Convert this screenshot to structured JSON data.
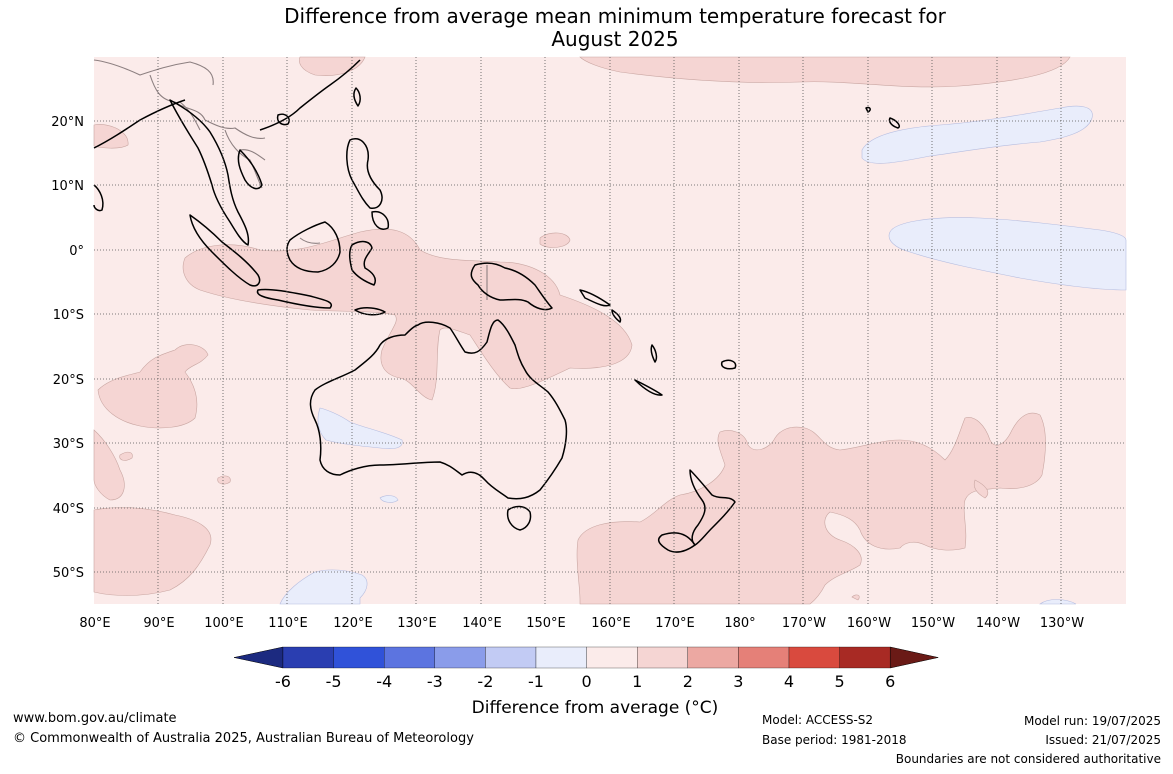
{
  "title_line1": "Difference from average mean minimum temperature forecast for",
  "title_line2": "August 2025",
  "lat_labels": [
    "20°N",
    "10°N",
    "0°",
    "10°S",
    "20°S",
    "30°S",
    "40°S",
    "50°S"
  ],
  "lon_labels": [
    "80°E",
    "90°E",
    "100°E",
    "110°E",
    "120°E",
    "130°E",
    "140°E",
    "150°E",
    "160°E",
    "170°E",
    "180°",
    "170°W",
    "160°W",
    "150°W",
    "140°W",
    "130°W"
  ],
  "colorbar": {
    "ticks": [
      "-6",
      "-5",
      "-4",
      "-3",
      "-2",
      "-1",
      "0",
      "1",
      "2",
      "3",
      "4",
      "5",
      "6"
    ],
    "colors": [
      "#1c2a80",
      "#2a3eb1",
      "#3052d9",
      "#5c74e0",
      "#8a9cea",
      "#c2cbf4",
      "#e9edfb",
      "#fbebea",
      "#f5d5d3",
      "#eca8a2",
      "#e58078",
      "#d94a3e",
      "#a82a24",
      "#6a1a16"
    ],
    "label": "Difference from average (°C)"
  },
  "footer": {
    "website": "www.bom.gov.au/climate",
    "copyright": "© Commonwealth of Australia 2025, Australian Bureau of Meteorology",
    "model": "Model: ACCESS-S2",
    "base_period": "Base period: 1981-2018",
    "model_run": "Model run: 19/07/2025",
    "issued": "Issued: 21/07/2025",
    "disclaimer": "Boundaries are not considered authoritative"
  }
}
